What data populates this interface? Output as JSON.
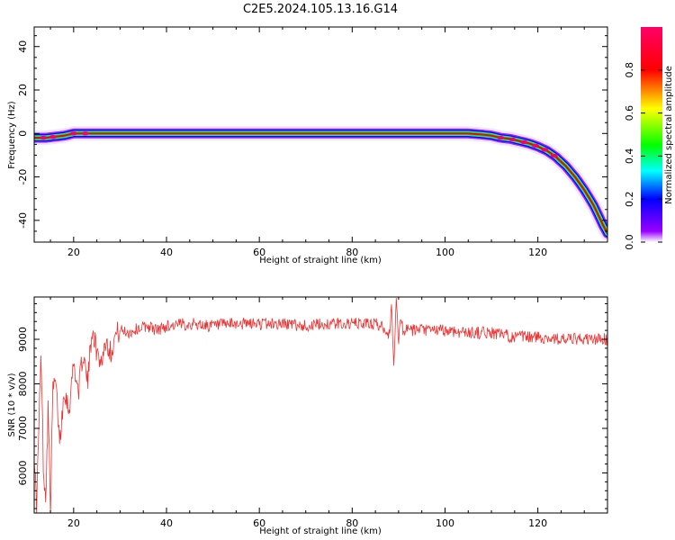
{
  "page_title": "C2E5.2024.105.13.16.G14",
  "colors": {
    "snr_line": "#ee3333",
    "colorbar": [
      "#ffffff",
      "#9900ff",
      "#0000ff",
      "#00ffff",
      "#00ff00",
      "#ffff00",
      "#ff0000",
      "#ff0066"
    ]
  },
  "chart_data": [
    {
      "type": "heatmap",
      "title": "C2E5.2024.105.13.16.G14",
      "xlabel": "Height of straight line (km)",
      "ylabel": "Frequency (Hz)",
      "xlim": [
        11.5,
        135
      ],
      "ylim": [
        -50,
        49
      ],
      "xticks": [
        20,
        40,
        60,
        80,
        100,
        120
      ],
      "yticks": [
        40,
        20,
        0,
        -20,
        -40
      ],
      "colorbar": {
        "label": "Normalized spectral amplitude",
        "range": [
          0,
          1
        ],
        "ticks": [
          "0.0",
          "0.2",
          "0.4",
          "0.6",
          "0.8"
        ]
      },
      "ridge": {
        "x": [
          11.5,
          14,
          16,
          18,
          20,
          25,
          40,
          60,
          80,
          100,
          105,
          108,
          110,
          112,
          114,
          116,
          118,
          120,
          122,
          124,
          126,
          128,
          130,
          132,
          134,
          135
        ],
        "y": [
          -2,
          -2,
          -1.5,
          -1,
          0,
          0,
          0,
          0,
          0,
          0,
          0,
          -0.5,
          -1,
          -2,
          -2.5,
          -3.5,
          -4.5,
          -6,
          -8,
          -11,
          -15,
          -20,
          -26,
          -33,
          -42,
          -46
        ]
      }
    },
    {
      "type": "line",
      "title": "",
      "xlabel": "Height of straight line (km)",
      "ylabel": "SNR (10 * v/v)",
      "xlim": [
        11.5,
        135
      ],
      "ylim": [
        5100,
        9950
      ],
      "xticks": [
        20,
        40,
        60,
        80,
        100,
        120
      ],
      "yticks": [
        6000,
        7000,
        8000,
        9000
      ],
      "series": [
        {
          "x": [
            11.5,
            12,
            12.5,
            13,
            13.5,
            14,
            14.5,
            15,
            15.5,
            16,
            16.5,
            17,
            17.5,
            18,
            19,
            20,
            21,
            22,
            23,
            24,
            25,
            26,
            27,
            28,
            29,
            30,
            32,
            34,
            36,
            38,
            40,
            45,
            50,
            55,
            60,
            65,
            70,
            75,
            80,
            85,
            87,
            88,
            88.5,
            89,
            89.5,
            90,
            90.5,
            91,
            92,
            95,
            100,
            105,
            110,
            115,
            120,
            125,
            130,
            135
          ],
          "y": [
            6500,
            5200,
            7000,
            8700,
            6000,
            5500,
            7500,
            5200,
            7800,
            8100,
            7500,
            6700,
            7300,
            7900,
            7400,
            8500,
            7800,
            8700,
            8000,
            9300,
            8700,
            8500,
            9000,
            8700,
            9100,
            9200,
            9150,
            9250,
            9300,
            9200,
            9300,
            9350,
            9300,
            9350,
            9350,
            9350,
            9300,
            9350,
            9350,
            9350,
            9250,
            9100,
            9700,
            8400,
            9850,
            9000,
            9450,
            9200,
            9200,
            9200,
            9200,
            9150,
            9150,
            9050,
            9050,
            9000,
            9000,
            9000
          ]
        }
      ]
    }
  ]
}
